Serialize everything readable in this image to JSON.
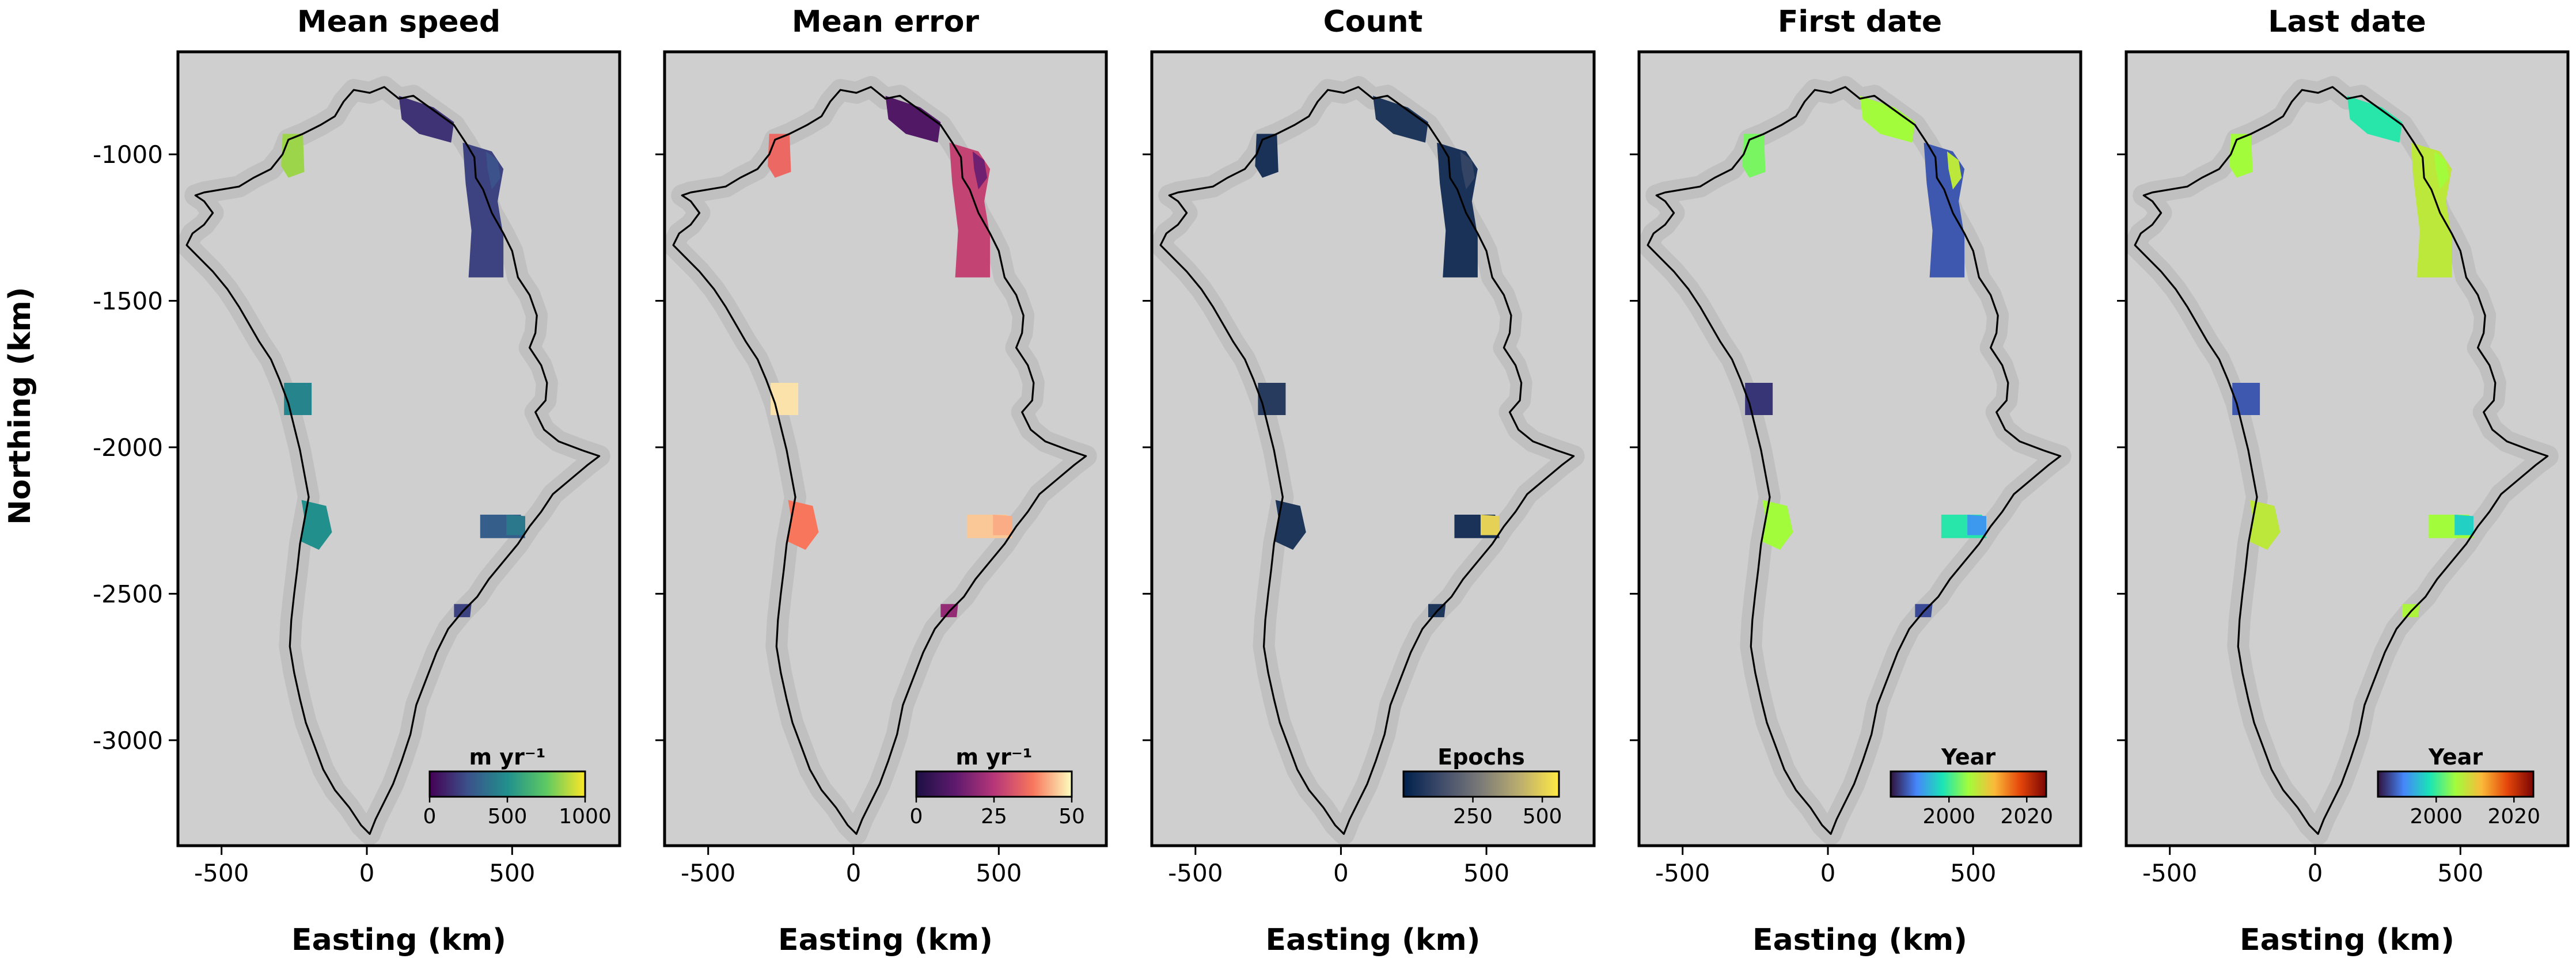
{
  "figure": {
    "ylabel": "Northing (km)",
    "xlabel": "Easting (km)"
  },
  "colors": {
    "background": "#ffffff",
    "panel_fill": "#cfcfcf",
    "outline": "#000000",
    "hillshade": "#b9b9b9"
  },
  "chart_data": [
    {
      "type": "heatmap",
      "title": "Mean speed",
      "xlabel": "Easting (km)",
      "ylabel": "Northing (km)",
      "xticks": [
        -500,
        0,
        500
      ],
      "yticks": [
        -1000,
        -1500,
        -2000,
        -2500,
        -3000
      ],
      "xlim": [
        -650,
        870
      ],
      "ylim": [
        -3360,
        -650
      ],
      "colorbar": {
        "label": "m yr⁻¹",
        "range": [
          0,
          1000
        ],
        "ticks": [
          0,
          500,
          1000
        ],
        "colormap": "viridis"
      },
      "background_level": 0.14,
      "region_levels": [
        0.85,
        0.15,
        0.2,
        0.25,
        0.45,
        0.5,
        0.3,
        0.4,
        0.2
      ]
    },
    {
      "type": "heatmap",
      "title": "Mean error",
      "xlabel": "Easting (km)",
      "ylabel": "",
      "xticks": [
        -500,
        0,
        500
      ],
      "yticks": [
        -1000,
        -1500,
        -2000,
        -2500,
        -3000
      ],
      "xlim": [
        -650,
        870
      ],
      "ylim": [
        -3360,
        -650
      ],
      "colorbar": {
        "label": "m yr⁻¹",
        "range": [
          0,
          50
        ],
        "ticks": [
          0,
          25,
          50
        ],
        "colormap": "inferno"
      },
      "background_level": 0.25,
      "region_levels": [
        0.7,
        0.2,
        0.55,
        0.3,
        0.95,
        0.75,
        0.9,
        0.85,
        0.4
      ]
    },
    {
      "type": "heatmap",
      "title": "Count",
      "xlabel": "Easting (km)",
      "ylabel": "",
      "xticks": [
        -500,
        0,
        500
      ],
      "yticks": [
        -1000,
        -1500,
        -2000,
        -2500,
        -3000
      ],
      "xlim": [
        -650,
        870
      ],
      "ylim": [
        -3360,
        -650
      ],
      "colorbar": {
        "label": "Epochs",
        "range": [
          0,
          560
        ],
        "ticks": [
          250,
          500
        ],
        "colormap": "cividis"
      },
      "background_level": 0.1,
      "region_levels": [
        0.1,
        0.12,
        0.1,
        0.2,
        0.15,
        0.12,
        0.1,
        0.9,
        0.12
      ]
    },
    {
      "type": "heatmap",
      "title": "First date",
      "xlabel": "Easting (km)",
      "ylabel": "",
      "xticks": [
        -500,
        0,
        500
      ],
      "yticks": [
        -1000,
        -1500,
        -2000,
        -2500,
        -3000
      ],
      "xlim": [
        -650,
        870
      ],
      "ylim": [
        -3360,
        -650
      ],
      "colorbar": {
        "label": "Year",
        "range": [
          1985,
          2025
        ],
        "ticks": [
          2000,
          2020
        ],
        "colormap": "turbo"
      },
      "background_level": 0.06,
      "region_levels": [
        0.45,
        0.5,
        0.1,
        0.55,
        0.05,
        0.5,
        0.35,
        0.2,
        0.08
      ]
    },
    {
      "type": "heatmap",
      "title": "Last date",
      "xlabel": "Easting (km)",
      "ylabel": "",
      "xticks": [
        -500,
        0,
        500
      ],
      "yticks": [
        -1000,
        -1500,
        -2000,
        -2500,
        -3000
      ],
      "xlim": [
        -650,
        870
      ],
      "ylim": [
        -3360,
        -650
      ],
      "colorbar": {
        "label": "Year",
        "range": [
          1985,
          2025
        ],
        "ticks": [
          2000,
          2020
        ],
        "colormap": "turbo"
      },
      "background_level": 0.55,
      "region_levels": [
        0.5,
        0.35,
        0.55,
        0.5,
        0.1,
        0.55,
        0.5,
        0.3,
        0.52
      ]
    }
  ]
}
